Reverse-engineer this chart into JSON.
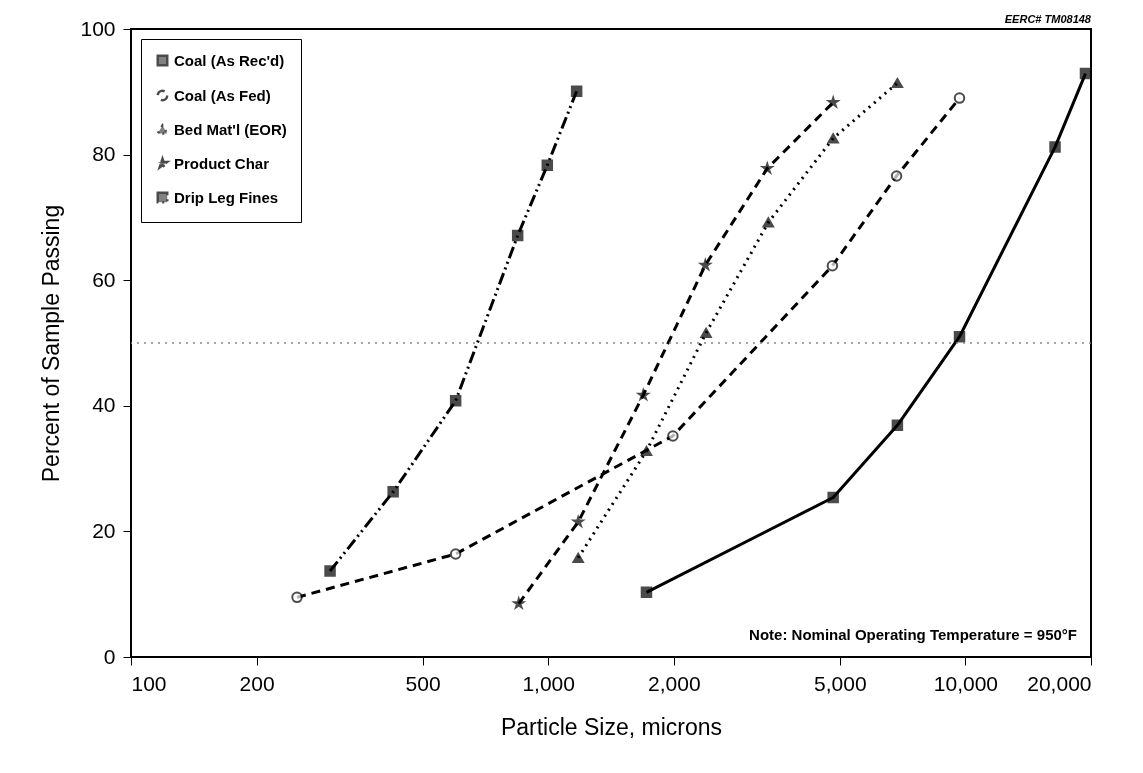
{
  "chart_data": {
    "type": "line",
    "xlabel": "Particle Size, microns",
    "ylabel": "Percent of Sample Passing",
    "log": "x",
    "xlim": [
      100,
      20000
    ],
    "xticks": [
      100,
      200,
      500,
      {
        "value": 1000,
        "label": "1,000"
      },
      {
        "value": 2000,
        "label": "2,000"
      },
      {
        "value": 5000,
        "label": "5,000"
      },
      {
        "value": 10000,
        "label": "10,000"
      },
      {
        "value": 20000,
        "label": "20,000"
      }
    ],
    "ylim": [
      0,
      100
    ],
    "yticks": [
      0,
      20,
      40,
      60,
      80,
      100
    ],
    "grid": false,
    "legend": "top left",
    "series": [
      {
        "name": "Coal (As Rec'd)",
        "color": "#000000",
        "marker": "square",
        "line_style": "solid",
        "x": [
          1720,
          4820,
          6870,
          9680,
          16400,
          19400
        ],
        "values": [
          10.3,
          25.4,
          36.9,
          51,
          81.2,
          92.9
        ]
      },
      {
        "name": "Coal (As Fed)",
        "color": "#000000",
        "marker": "circle",
        "line_style": "dashed",
        "x": [
          250,
          600,
          1990,
          4800,
          6840,
          9680
        ],
        "values": [
          9.5,
          16.4,
          35.2,
          62.3,
          76.6,
          89
        ]
      },
      {
        "name": "Bed Mat'l (EOR)",
        "color": "#000000",
        "marker": "triangle",
        "line_style": "dotted",
        "x": [
          1180,
          1720,
          2390,
          3370,
          4820,
          6870
        ],
        "values": [
          15.8,
          32.8,
          51.6,
          69.2,
          82.6,
          91.4
        ]
      },
      {
        "name": "Product Char",
        "color": "#000000",
        "marker": "star",
        "line_style": "dashed",
        "x": [
          850,
          1180,
          1690,
          2380,
          3350,
          4820
        ],
        "values": [
          8.5,
          21.5,
          41.7,
          62.4,
          77.8,
          88.3
        ]
      },
      {
        "name": "Drip Leg Fines",
        "color": "#000000",
        "marker": "square",
        "line_style": "dashdot",
        "x": [
          300,
          425,
          600,
          845,
          995,
          1170
        ],
        "values": [
          13.7,
          26.3,
          40.8,
          67.1,
          78.3,
          90.1
        ]
      }
    ],
    "ref_lines": [
      {
        "axis": "y",
        "value": 50,
        "color": "#888888",
        "line_style": "dotted"
      }
    ],
    "annotations": [
      "EERC# TM08148",
      "Note: Nominal Operating Temperature = 950°F"
    ]
  }
}
